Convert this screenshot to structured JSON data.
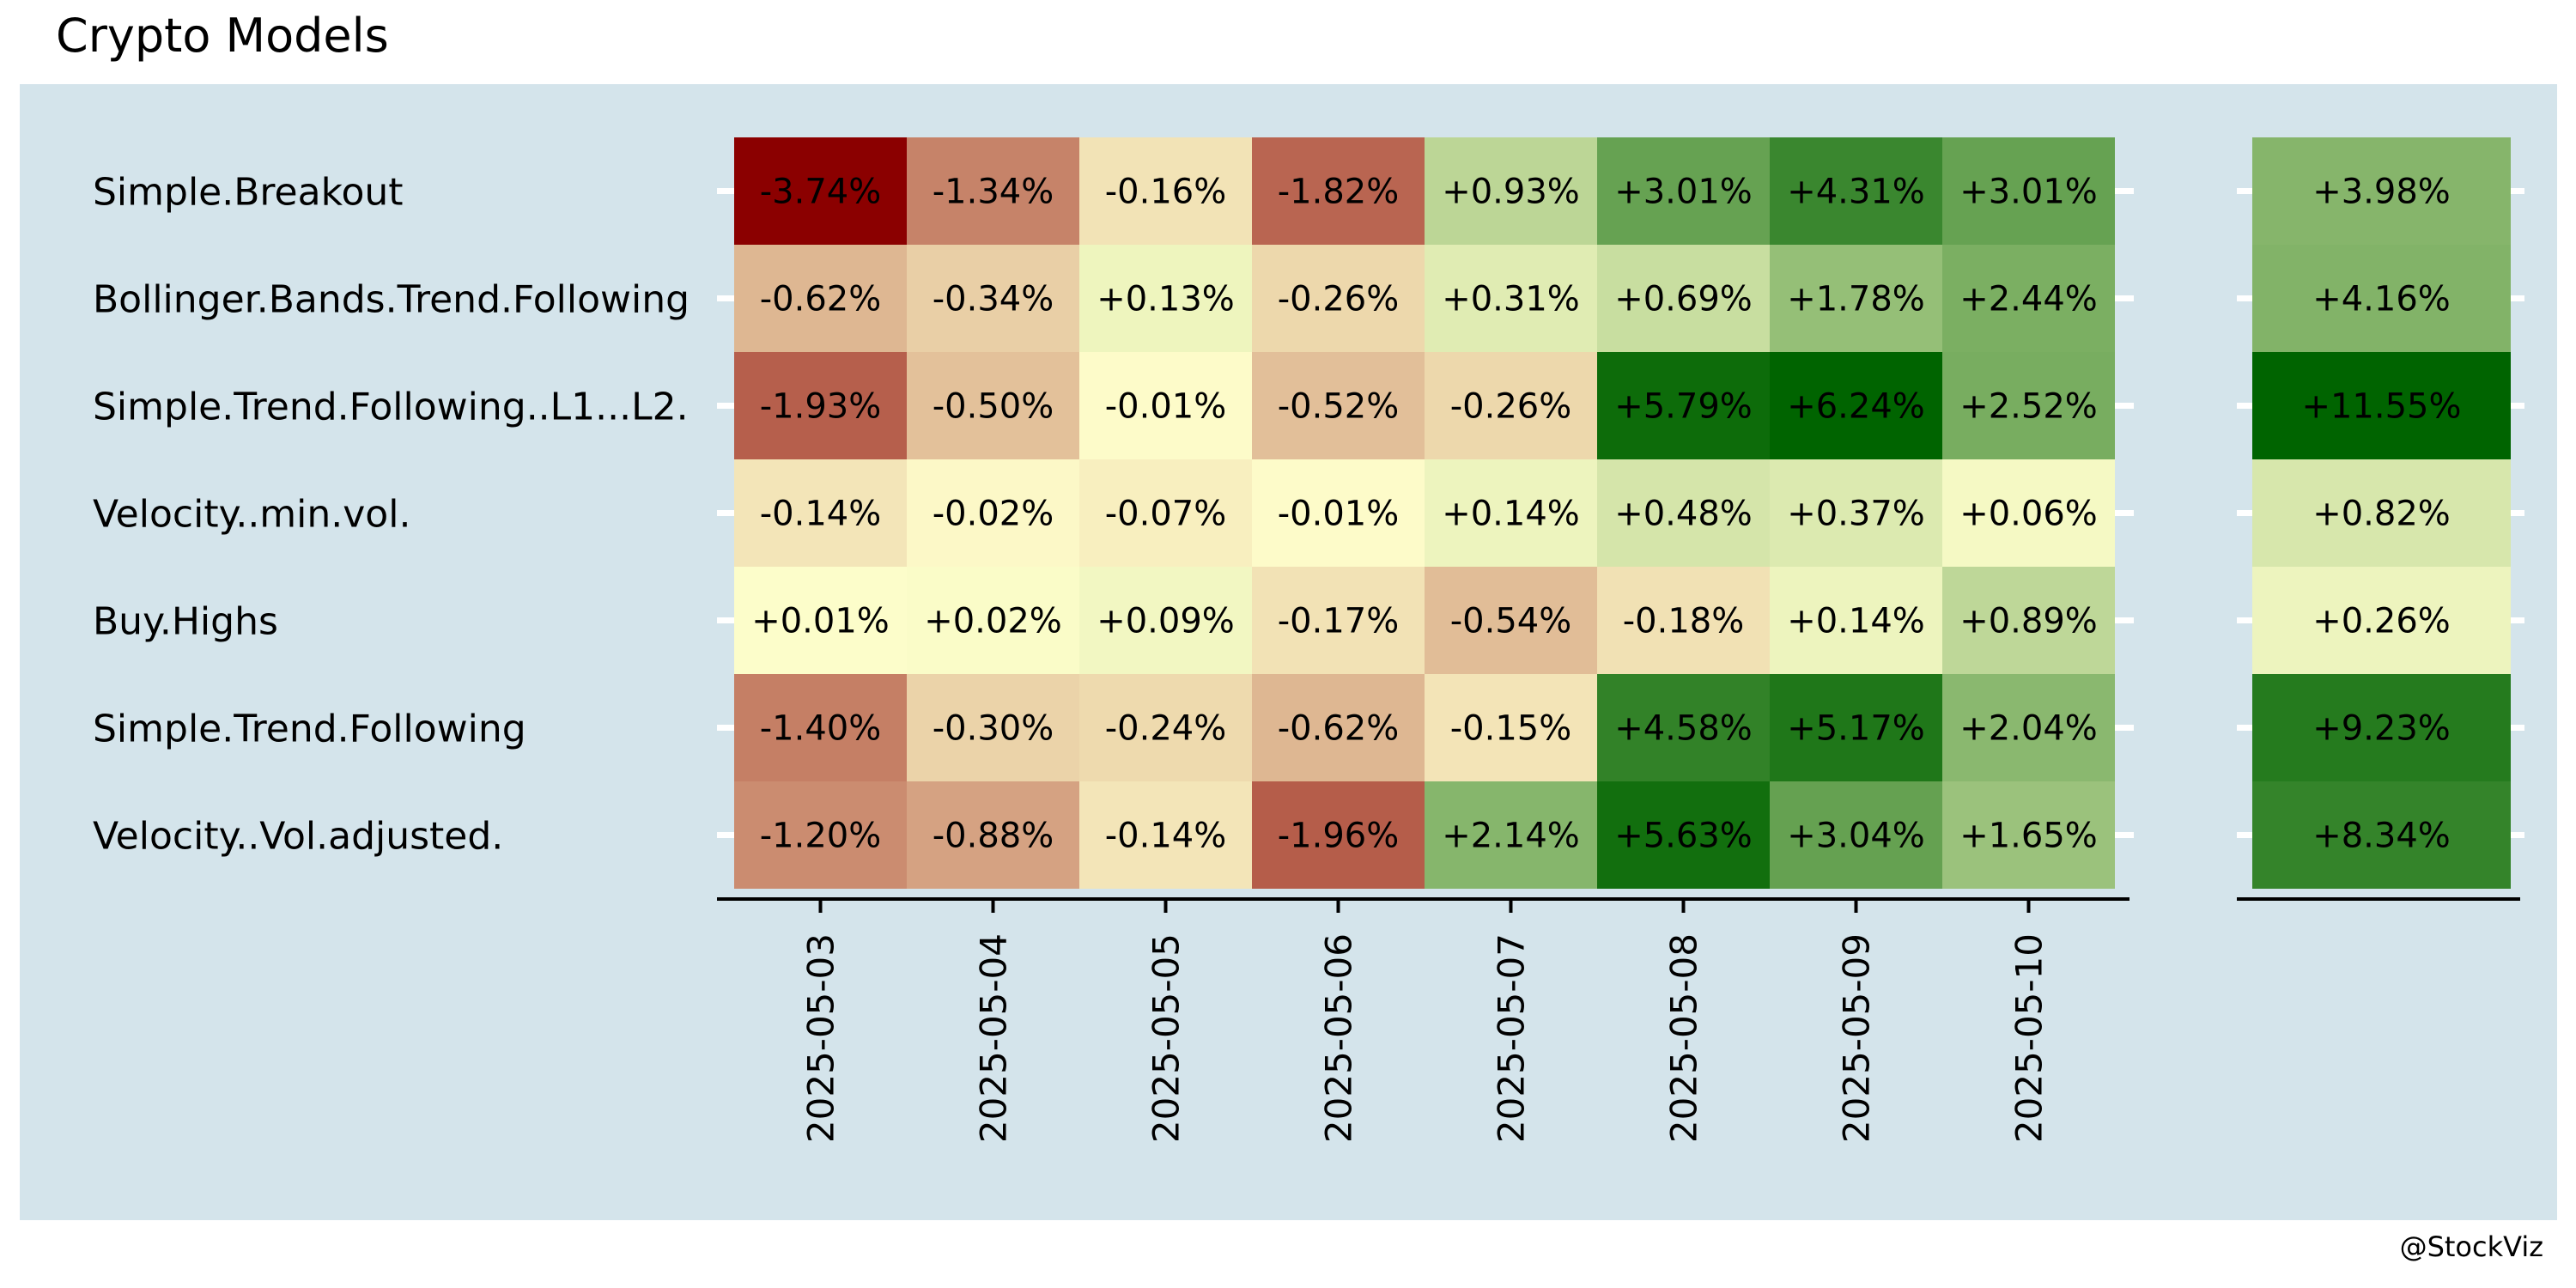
{
  "title": "Crypto Models",
  "credit": "@StockViz",
  "chart_data": {
    "type": "heatmap",
    "title": "Crypto Models",
    "xlabel": "",
    "ylabel": "",
    "x": [
      "2025-05-03",
      "2025-05-04",
      "2025-05-05",
      "2025-05-06",
      "2025-05-07",
      "2025-05-08",
      "2025-05-09",
      "2025-05-10"
    ],
    "y": [
      "Simple.Breakout",
      "Bollinger.Bands.Trend.Following",
      "Simple.Trend.Following..L1...L2.",
      "Velocity..min.vol.",
      "Buy.Highs",
      "Simple.Trend.Following",
      "Velocity..Vol.adjusted."
    ],
    "values": [
      [
        -3.74,
        -1.34,
        -0.16,
        -1.82,
        0.93,
        3.01,
        4.31,
        3.01
      ],
      [
        -0.62,
        -0.34,
        0.13,
        -0.26,
        0.31,
        0.69,
        1.78,
        2.44
      ],
      [
        -1.93,
        -0.5,
        -0.01,
        -0.52,
        -0.26,
        5.79,
        6.24,
        2.52
      ],
      [
        -0.14,
        -0.02,
        -0.07,
        -0.01,
        0.14,
        0.48,
        0.37,
        0.06
      ],
      [
        0.01,
        0.02,
        0.09,
        -0.17,
        -0.54,
        -0.18,
        0.14,
        0.89
      ],
      [
        -1.4,
        -0.3,
        -0.24,
        -0.62,
        -0.15,
        4.58,
        5.17,
        2.04
      ],
      [
        -1.2,
        -0.88,
        -0.14,
        -1.96,
        2.14,
        5.63,
        3.04,
        1.65
      ]
    ],
    "labels": [
      [
        "-3.74%",
        "-1.34%",
        "-0.16%",
        "-1.82%",
        "+0.93%",
        "+3.01%",
        "+4.31%",
        "+3.01%"
      ],
      [
        "-0.62%",
        "-0.34%",
        "+0.13%",
        "-0.26%",
        "+0.31%",
        "+0.69%",
        "+1.78%",
        "+2.44%"
      ],
      [
        "-1.93%",
        "-0.50%",
        "-0.01%",
        "-0.52%",
        "-0.26%",
        "+5.79%",
        "+6.24%",
        "+2.52%"
      ],
      [
        "-0.14%",
        "-0.02%",
        "-0.07%",
        "-0.01%",
        "+0.14%",
        "+0.48%",
        "+0.37%",
        "+0.06%"
      ],
      [
        "+0.01%",
        "+0.02%",
        "+0.09%",
        "-0.17%",
        "-0.54%",
        "-0.18%",
        "+0.14%",
        "+0.89%"
      ],
      [
        "-1.40%",
        "-0.30%",
        "-0.24%",
        "-0.62%",
        "-0.15%",
        "+4.58%",
        "+5.17%",
        "+2.04%"
      ],
      [
        "-1.20%",
        "-0.88%",
        "-0.14%",
        "-1.96%",
        "+2.14%",
        "+5.63%",
        "+3.04%",
        "+1.65%"
      ]
    ],
    "totals": [
      3.98,
      4.16,
      11.55,
      0.82,
      0.26,
      9.23,
      8.34
    ],
    "total_labels": [
      "+3.98%",
      "+4.16%",
      "+11.55%",
      "+0.82%",
      "+0.26%",
      "+9.23%",
      "+8.34%"
    ],
    "colors": {
      "negative": "#8b0000",
      "neutral": "#ffffcc",
      "positive": "#006400",
      "panel_background": "#d4e4eb"
    },
    "grid": false,
    "legend": "none"
  }
}
